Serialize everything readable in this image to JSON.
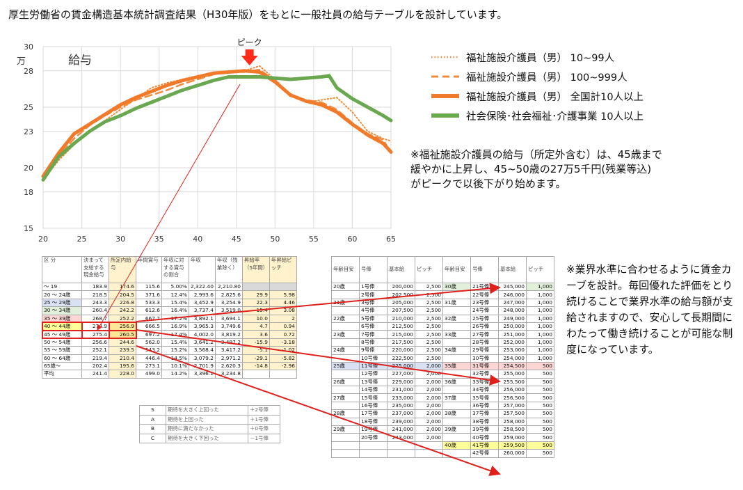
{
  "headline": "厚生労働省の賃金構造基本統計調査結果（H30年版）をもとに一般社員の給与テーブルを設計しています。",
  "chart_data": {
    "type": "line",
    "title": "給与",
    "yunit": "万",
    "peak_label": "ピーク",
    "xlim": [
      20,
      65
    ],
    "ylim": [
      15,
      30
    ],
    "x_ticks": [
      20,
      25,
      30,
      35,
      40,
      45,
      50,
      55,
      60,
      65
    ],
    "y_ticks": [
      15,
      18,
      20,
      23,
      25,
      28,
      30
    ],
    "grid": true,
    "legend_position": "right",
    "series": [
      {
        "name": "福祉施設介護員（男） 10~99人",
        "color": "#f08a3c",
        "style": "dotted",
        "points": [
          [
            20,
            19.0
          ],
          [
            22,
            20.6
          ],
          [
            24,
            21.9
          ],
          [
            26,
            23.0
          ],
          [
            28,
            23.9
          ],
          [
            30,
            24.8
          ],
          [
            32,
            25.7
          ],
          [
            34,
            26.6
          ],
          [
            36,
            27.0
          ],
          [
            38,
            27.3
          ],
          [
            40,
            27.6
          ],
          [
            42,
            27.8
          ],
          [
            44,
            27.9
          ],
          [
            46,
            28.0
          ],
          [
            48,
            28.4
          ],
          [
            50,
            27.3
          ],
          [
            52,
            26.0
          ],
          [
            54,
            25.4
          ],
          [
            56,
            25.6
          ],
          [
            58,
            25.8
          ],
          [
            60,
            24.6
          ],
          [
            62,
            23.0
          ],
          [
            64,
            22.4
          ],
          [
            65,
            22.2
          ]
        ]
      },
      {
        "name": "福祉施設介護員（男） 100~999人",
        "color": "#f08a3c",
        "style": "dashed",
        "points": [
          [
            20,
            19.1
          ],
          [
            22,
            20.9
          ],
          [
            24,
            22.4
          ],
          [
            26,
            23.5
          ],
          [
            28,
            24.3
          ],
          [
            30,
            25.0
          ],
          [
            32,
            25.6
          ],
          [
            34,
            26.0
          ],
          [
            36,
            26.4
          ],
          [
            38,
            26.9
          ],
          [
            40,
            27.3
          ],
          [
            42,
            27.7
          ],
          [
            44,
            27.9
          ],
          [
            46,
            27.9
          ],
          [
            48,
            28.1
          ],
          [
            50,
            27.2
          ],
          [
            52,
            25.9
          ],
          [
            54,
            25.6
          ],
          [
            56,
            25.4
          ],
          [
            58,
            24.8
          ],
          [
            60,
            23.7
          ],
          [
            62,
            22.8
          ],
          [
            64,
            22.3
          ],
          [
            65,
            21.2
          ]
        ]
      },
      {
        "name": "福祉施設介護員（男） 全国計10人以上",
        "color": "#f07a2a",
        "style": "thick",
        "points": [
          [
            20,
            19.3
          ],
          [
            22,
            21.2
          ],
          [
            24,
            22.8
          ],
          [
            26,
            23.6
          ],
          [
            28,
            24.4
          ],
          [
            30,
            25.2
          ],
          [
            32,
            25.8
          ],
          [
            34,
            26.3
          ],
          [
            36,
            26.8
          ],
          [
            38,
            27.2
          ],
          [
            40,
            27.5
          ],
          [
            42,
            27.8
          ],
          [
            44,
            27.9
          ],
          [
            46,
            28.0
          ],
          [
            48,
            27.9
          ],
          [
            50,
            27.1
          ],
          [
            52,
            26.0
          ],
          [
            54,
            25.5
          ],
          [
            56,
            25.2
          ],
          [
            58,
            24.6
          ],
          [
            60,
            23.6
          ],
          [
            62,
            22.7
          ],
          [
            64,
            22.0
          ],
          [
            65,
            21.3
          ]
        ]
      },
      {
        "name": "社会保険･社会福祉･介護事業 10人以上",
        "color": "#6aa84f",
        "style": "thick",
        "points": [
          [
            20,
            19.0
          ],
          [
            22,
            20.9
          ],
          [
            24,
            22.0
          ],
          [
            26,
            23.0
          ],
          [
            28,
            23.8
          ],
          [
            30,
            24.3
          ],
          [
            32,
            24.9
          ],
          [
            34,
            25.4
          ],
          [
            36,
            25.9
          ],
          [
            38,
            26.4
          ],
          [
            40,
            26.8
          ],
          [
            42,
            27.2
          ],
          [
            44,
            27.5
          ],
          [
            46,
            27.5
          ],
          [
            48,
            27.5
          ],
          [
            50,
            27.4
          ],
          [
            52,
            27.3
          ],
          [
            54,
            27.4
          ],
          [
            56,
            27.5
          ],
          [
            57,
            27.6
          ],
          [
            58,
            26.6
          ],
          [
            60,
            25.7
          ],
          [
            62,
            25.0
          ],
          [
            64,
            24.3
          ],
          [
            65,
            23.9
          ]
        ]
      }
    ]
  },
  "note1": [
    "※福祉施設介護員の給与（所定外含む）は、45歳まで",
    "緩やかに上昇し、45~50歳の27万5千円(残業等込)",
    "がピークで以後下がり始めます。"
  ],
  "note2": "※業界水準に合わせるように賃金カーブを設計。毎回優れた評価をとり続けることで業界水準の給与額が支給されますので、安心して長期間にわたって働き続けることが可能な制度になっています。",
  "wage_table": {
    "headers": [
      "区 分",
      "決まって支給する現金給与",
      "所定内給与",
      "年間賞与",
      "年収に対する賞与の割合",
      "年収",
      "年収（残業除く）",
      "昇給率（5年間）",
      "年昇給ピッチ"
    ],
    "rows": [
      [
        "～ 19",
        "183.9",
        "174.6",
        "115.6",
        "5.00%",
        "2,322.40",
        "2,210.80",
        "",
        ""
      ],
      [
        "20 ～ 24歳",
        "218.5",
        "204.5",
        "371.6",
        "12.4%",
        "2,993.6",
        "2,825.6",
        "29.9",
        "5.98"
      ],
      [
        "25 ～ 29歳",
        "243.3",
        "226.8",
        "533.3",
        "15.4%",
        "3,452.9",
        "3,254.9",
        "22.3",
        "4.46"
      ],
      [
        "30 ～ 34歳",
        "260.4",
        "242.2",
        "612.6",
        "16.4%",
        "3,737.4",
        "3,519.0",
        "15.4",
        "3.08"
      ],
      [
        "35 ～ 39歳",
        "268.7",
        "252.2",
        "667.7",
        "17.2%",
        "3,892.1",
        "3,694.1",
        "10.0",
        "2"
      ],
      [
        "40 ～ 44歳",
        "274.9",
        "256.9",
        "666.5",
        "16.9%",
        "3,965.3",
        "3,749.6",
        "4.7",
        "0.94"
      ],
      [
        "45 ～ 49歳",
        "275.4",
        "260.5",
        "697.2",
        "17.4%",
        "4,002.0",
        "3,819.2",
        "3.6",
        "0.72"
      ],
      [
        "50 ～ 54歳",
        "256.6",
        "244.6",
        "562.0",
        "15.4%",
        "3,641.2",
        "3,497.2",
        "-15.9",
        "-3.18"
      ],
      [
        "55 ～ 59歳",
        "252.1",
        "239.5",
        "543.2",
        "15.2%",
        "3,568.4",
        "3,417.2",
        "-5.1",
        "-1.02"
      ],
      [
        "60 ～ 64歳",
        "219.4",
        "210.4",
        "446.4",
        "14.5%",
        "3,079.2",
        "2,971.2",
        "-29.1",
        "-5.82"
      ],
      [
        "65歳～",
        "202.4",
        "195.6",
        "273.1",
        "10.1%",
        "2,701.9",
        "2,620.3",
        "-14.8",
        "-2.96"
      ],
      [
        "平均",
        "241.4",
        "228.0",
        "499.0",
        "14.2%",
        "3,396.1",
        "3,234.8",
        "",
        ""
      ]
    ]
  },
  "eval_table": [
    [
      "S",
      "期待を大きく上回った",
      "＋2号俸"
    ],
    [
      "A",
      "期待を上回った",
      "＋1号俸"
    ],
    [
      "B",
      "期待に満たなかった",
      "＋0号俸"
    ],
    [
      "C",
      "期待を大きく下回った",
      "－1号俸"
    ]
  ],
  "pay_table": {
    "headers": [
      "年齢目安",
      "号俸",
      "基本給",
      "ピッチ",
      "年齢目安",
      "号俸",
      "基本給",
      "ピッチ"
    ],
    "rows": [
      [
        "20歳",
        "1号俸",
        "200,000",
        "2,500",
        "30歳",
        "21号俸",
        "245,000",
        "1,000"
      ],
      [
        "",
        "2号俸",
        "202,500",
        "2,500",
        "",
        "22号俸",
        "246,000",
        "1,000"
      ],
      [
        "21歳",
        "3号俸",
        "205,000",
        "2,500",
        "31歳",
        "23号俸",
        "247,000",
        "1,000"
      ],
      [
        "",
        "4号俸",
        "207,500",
        "2,500",
        "",
        "24号俸",
        "248,000",
        "1,000"
      ],
      [
        "22歳",
        "5号俸",
        "210,000",
        "2,500",
        "32歳",
        "25号俸",
        "249,000",
        "1,000"
      ],
      [
        "",
        "6号俸",
        "212,500",
        "2,500",
        "",
        "26号俸",
        "250,000",
        "1,000"
      ],
      [
        "23歳",
        "7号俸",
        "215,000",
        "2,500",
        "33歳",
        "27号俸",
        "251,000",
        "1,000"
      ],
      [
        "",
        "8号俸",
        "217,500",
        "2,500",
        "",
        "28号俸",
        "252,000",
        "1,000"
      ],
      [
        "24歳",
        "9号俸",
        "220,000",
        "2,500",
        "34歳",
        "29号俸",
        "253,000",
        "1,000"
      ],
      [
        "",
        "10号俸",
        "222,500",
        "2,500",
        "",
        "30号俸",
        "254,000",
        "1,000"
      ],
      [
        "25歳",
        "11号俸",
        "225,000",
        "2,000",
        "35歳",
        "31号俸",
        "254,500",
        "500"
      ],
      [
        "",
        "12号俸",
        "227,000",
        "2,000",
        "",
        "32号俸",
        "255,000",
        "500"
      ],
      [
        "26歳",
        "13号俸",
        "229,000",
        "2,000",
        "36歳",
        "33号俸",
        "255,500",
        "500"
      ],
      [
        "",
        "14号俸",
        "231,000",
        "2,000",
        "",
        "34号俸",
        "256,000",
        "500"
      ],
      [
        "27歳",
        "15号俸",
        "233,000",
        "2,000",
        "37歳",
        "35号俸",
        "256,500",
        "500"
      ],
      [
        "",
        "16号俸",
        "235,000",
        "2,000",
        "",
        "36号俸",
        "257,000",
        "500"
      ],
      [
        "28歳",
        "17号俸",
        "237,000",
        "2,000",
        "38歳",
        "37号俸",
        "257,500",
        "500"
      ],
      [
        "",
        "18号俸",
        "239,000",
        "2,000",
        "",
        "38号俸",
        "258,000",
        "500"
      ],
      [
        "29歳",
        "19号俸",
        "241,000",
        "2,000",
        "39歳",
        "39号俸",
        "258,500",
        "500"
      ],
      [
        "",
        "20号俸",
        "243,000",
        "2,000",
        "",
        "40号俸",
        "259,000",
        "500"
      ],
      [
        "",
        "",
        "",
        "",
        "40歳",
        "41号俸",
        "259,500",
        "500"
      ],
      [
        "",
        "",
        "",
        "",
        "",
        "42号俸",
        "260,000",
        "500"
      ]
    ]
  },
  "colors": {
    "orange": "#f08a3c",
    "green": "#6aa84f",
    "red": "#e0201c",
    "yellow": "#ffe699"
  }
}
